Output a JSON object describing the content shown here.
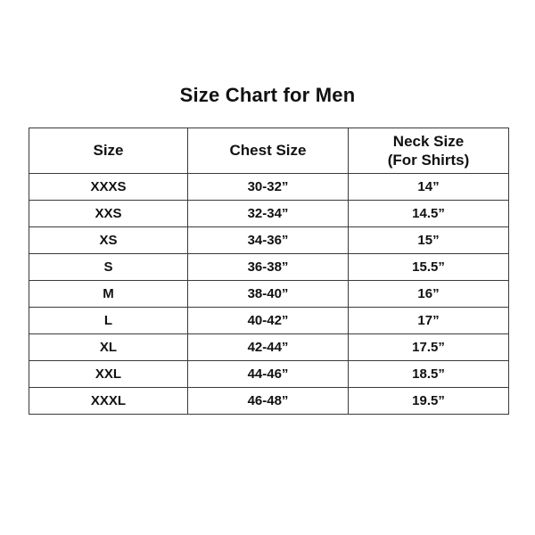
{
  "page": {
    "title": "Size Chart for Men"
  },
  "table": {
    "columns": [
      {
        "label": "Size",
        "sub": ""
      },
      {
        "label": "Chest Size",
        "sub": ""
      },
      {
        "label": "Neck Size",
        "sub": "(For Shirts)"
      }
    ],
    "rows": [
      [
        "XXXS",
        "30-32”",
        "14”"
      ],
      [
        "XXS",
        "32-34”",
        "14.5”"
      ],
      [
        "XS",
        "34-36”",
        "15”"
      ],
      [
        "S",
        "36-38”",
        "15.5”"
      ],
      [
        "M",
        "38-40”",
        "16”"
      ],
      [
        "L",
        "40-42”",
        "17”"
      ],
      [
        "XL",
        "42-44”",
        "17.5”"
      ],
      [
        "XXL",
        "44-46”",
        "18.5”"
      ],
      [
        "XXXL",
        "46-48”",
        "19.5”"
      ]
    ]
  },
  "chart_data": {
    "type": "table",
    "title": "Size Chart for Men",
    "columns": [
      "Size",
      "Chest Size",
      "Neck Size (For Shirts)"
    ],
    "rows": [
      [
        "XXXS",
        "30-32”",
        "14”"
      ],
      [
        "XXS",
        "32-34”",
        "14.5”"
      ],
      [
        "XS",
        "34-36”",
        "15”"
      ],
      [
        "S",
        "36-38”",
        "15.5”"
      ],
      [
        "M",
        "38-40”",
        "16”"
      ],
      [
        "L",
        "40-42”",
        "17”"
      ],
      [
        "XL",
        "42-44”",
        "17.5”"
      ],
      [
        "XXL",
        "44-46”",
        "18.5”"
      ],
      [
        "XXXL",
        "46-48”",
        "19.5”"
      ]
    ],
    "layout": {
      "grid": true,
      "text_color": "#111111",
      "border_color": "#3a3a3a",
      "background": "#ffffff"
    }
  }
}
